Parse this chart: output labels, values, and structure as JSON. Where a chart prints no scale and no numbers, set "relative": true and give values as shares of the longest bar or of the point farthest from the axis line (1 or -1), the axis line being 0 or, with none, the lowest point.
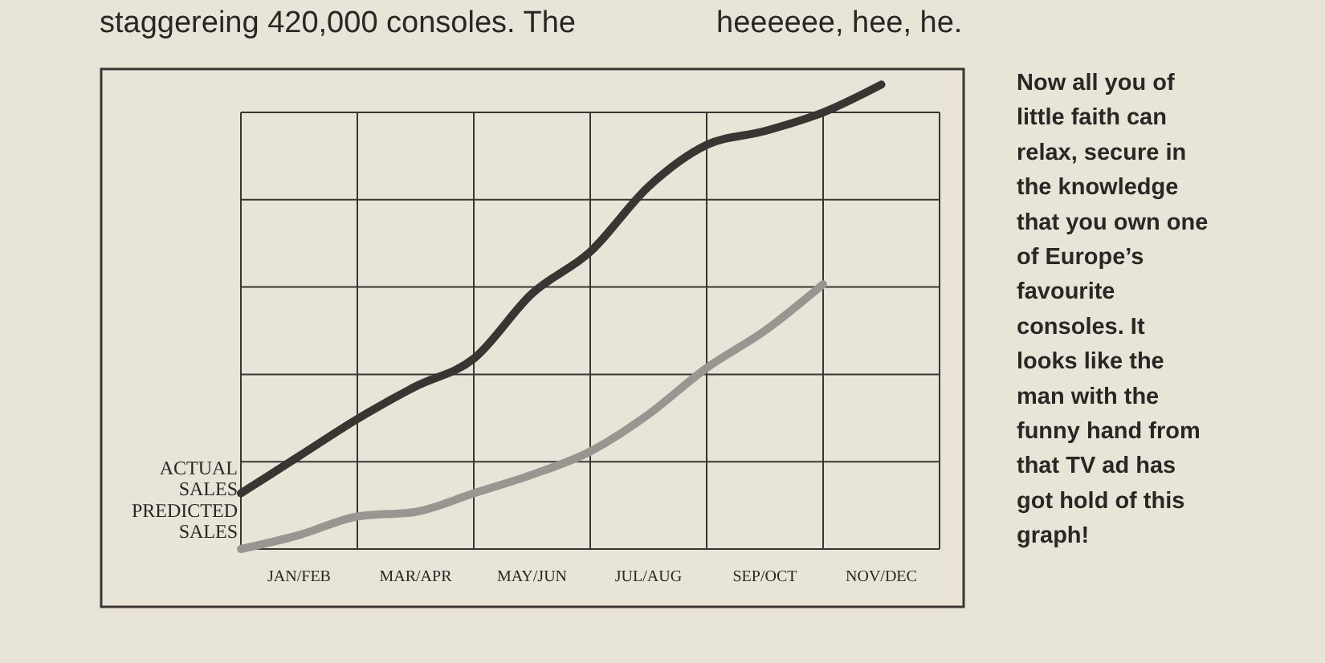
{
  "chart_data": {
    "type": "line",
    "relative": true,
    "categories": [
      null,
      "JAN/FEB",
      null,
      "MAR/APR",
      null,
      "MAY/JUN",
      null,
      "JUL/AUG",
      null,
      "SEP/OCT",
      null,
      "NOV/DEC",
      null
    ],
    "series": [
      {
        "name": "ACTUAL SALES",
        "color": "#3a3532",
        "values": [
          0.12,
          0.2,
          0.28,
          0.35,
          0.41,
          0.55,
          0.64,
          0.78,
          0.87,
          0.9,
          0.94,
          1.0,
          null
        ]
      },
      {
        "name": "PREDICTED SALES",
        "color": "#9a9590",
        "values": [
          0.0,
          0.03,
          0.07,
          0.08,
          0.12,
          0.16,
          0.21,
          0.29,
          0.39,
          0.47,
          0.57,
          null,
          null
        ]
      }
    ],
    "grid": true,
    "marker": "none",
    "line_style": "solid",
    "annotations": [
      "staggereing 420,000 consoles. The",
      "heeeeee, hee, he.",
      "Now all you of little faith can relax, secure in the knowledge that you own one of Europe’s favourite consoles. It looks like the man with the funny hand from that TV ad has got hold of this graph!"
    ]
  }
}
